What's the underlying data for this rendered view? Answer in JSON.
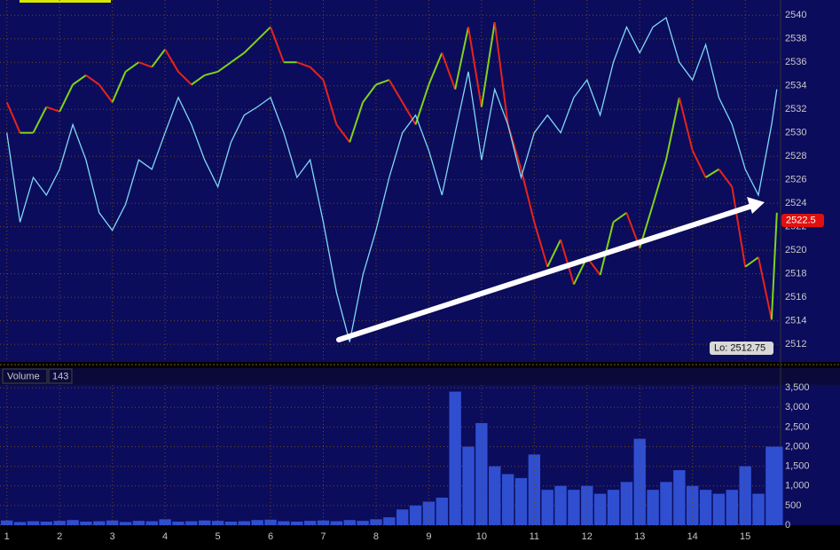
{
  "chart_data": [
    {
      "type": "line",
      "x": [
        1,
        1.25,
        1.5,
        1.75,
        2,
        2.25,
        2.5,
        2.75,
        3,
        3.25,
        3.5,
        3.75,
        4,
        4.25,
        4.5,
        4.75,
        5,
        5.25,
        5.5,
        5.75,
        6,
        6.25,
        6.5,
        6.75,
        7,
        7.25,
        7.5,
        7.75,
        8,
        8.25,
        8.5,
        8.75,
        9,
        9.25,
        9.5,
        9.75,
        10,
        10.25,
        10.5,
        10.75,
        11,
        11.25,
        11.5,
        11.75,
        12,
        12.25,
        12.5,
        12.75,
        13,
        13.25,
        13.5,
        13.75,
        14,
        14.25,
        14.5,
        14.75,
        15,
        15.25,
        15.5,
        15.6
      ],
      "series": [
        {
          "color": "#7fd31a",
          "down_color": "#e8231a",
          "values": [
            2532.6,
            2530.0,
            2530.0,
            2532.2,
            2531.8,
            2534.1,
            2534.9,
            2534.1,
            2532.6,
            2535.2,
            2536.0,
            2535.6,
            2537.1,
            2535.2,
            2534.1,
            2534.9,
            2535.2,
            2536.0,
            2536.8,
            2537.9,
            2539.0,
            2536.0,
            2536.0,
            2535.6,
            2534.5,
            2530.7,
            2529.2,
            2532.6,
            2534.1,
            2534.5,
            2532.6,
            2530.7,
            2534.1,
            2536.8,
            2533.7,
            2539.0,
            2532.2,
            2539.4,
            2530.7,
            2526.9,
            2522.4,
            2518.6,
            2520.9,
            2517.1,
            2519.4,
            2517.9,
            2522.4,
            2523.2,
            2520.2,
            2523.9,
            2527.7,
            2533.0,
            2528.5,
            2526.2,
            2526.9,
            2525.4,
            2518.6,
            2519.4,
            2514.1,
            2523.2
          ]
        },
        {
          "color": "#7fd8f5",
          "values": [
            2530.0,
            2522.4,
            2526.2,
            2524.7,
            2526.9,
            2530.7,
            2527.7,
            2523.2,
            2521.7,
            2523.9,
            2527.7,
            2526.9,
            2530.0,
            2533.0,
            2530.7,
            2527.7,
            2525.4,
            2529.2,
            2531.5,
            2532.2,
            2533.0,
            2530.0,
            2526.2,
            2527.7,
            2522.4,
            2516.4,
            2512.2,
            2517.9,
            2521.7,
            2526.2,
            2530.0,
            2531.5,
            2528.5,
            2524.7,
            2530.0,
            2535.2,
            2527.7,
            2533.7,
            2530.7,
            2526.2,
            2530.0,
            2531.5,
            2530.0,
            2533.0,
            2534.5,
            2531.5,
            2536.0,
            2539.0,
            2536.8,
            2539.0,
            2539.8,
            2536.0,
            2534.5,
            2537.5,
            2533.0,
            2530.7,
            2526.9,
            2524.7,
            2530.7,
            2533.7
          ]
        }
      ],
      "xlim": [
        0.87,
        15.67
      ],
      "xticks": [
        1,
        2,
        3,
        4,
        5,
        6,
        7,
        8,
        9,
        10,
        11,
        12,
        13,
        14,
        15
      ],
      "ylim": [
        2510.5,
        2541.3
      ],
      "yticks": [
        2512,
        2514,
        2516,
        2518,
        2520,
        2522,
        2524,
        2526,
        2528,
        2530,
        2532,
        2534,
        2536,
        2538,
        2540
      ],
      "grid": true,
      "last_price": 2522.5,
      "annotation": "Lo: 2512.75"
    },
    {
      "type": "bar",
      "title": "Volume",
      "current_value": 143,
      "color": "#2f4fd0",
      "x": [
        1,
        1.25,
        1.5,
        1.75,
        2,
        2.25,
        2.5,
        2.75,
        3,
        3.25,
        3.5,
        3.75,
        4,
        4.25,
        4.5,
        4.75,
        5,
        5.25,
        5.5,
        5.75,
        6,
        6.25,
        6.5,
        6.75,
        7,
        7.25,
        7.5,
        7.75,
        8,
        8.25,
        8.5,
        8.75,
        9,
        9.25,
        9.5,
        9.75,
        10,
        10.25,
        10.5,
        10.75,
        11,
        11.25,
        11.5,
        11.75,
        12,
        12.25,
        12.5,
        12.75,
        13,
        13.25,
        13.5,
        13.75,
        14,
        14.25,
        14.5,
        14.75,
        15,
        15.25,
        15.5,
        15.6
      ],
      "values": [
        120,
        80,
        100,
        90,
        110,
        130,
        90,
        100,
        120,
        80,
        110,
        100,
        150,
        90,
        100,
        120,
        110,
        90,
        100,
        130,
        140,
        100,
        90,
        110,
        120,
        100,
        130,
        110,
        150,
        200,
        400,
        500,
        600,
        700,
        3400,
        2000,
        2600,
        1500,
        1300,
        1200,
        1800,
        900,
        1000,
        900,
        1000,
        800,
        900,
        1100,
        2200,
        900,
        1100,
        1400,
        1000,
        900,
        800,
        900,
        1500,
        800,
        2000,
        2000
      ],
      "xlim": [
        0.87,
        15.67
      ],
      "ylim": [
        0,
        3570
      ],
      "yticks": [
        0,
        500,
        {
          "value": 1000,
          "label": "1,000"
        },
        {
          "value": 1500,
          "label": "1,500"
        },
        {
          "value": 2000,
          "label": "2,000"
        },
        {
          "value": 2500,
          "label": "2,500"
        },
        {
          "value": 3000,
          "label": "3,000"
        },
        {
          "value": 3500,
          "label": "3,500"
        }
      ],
      "grid": true
    }
  ]
}
